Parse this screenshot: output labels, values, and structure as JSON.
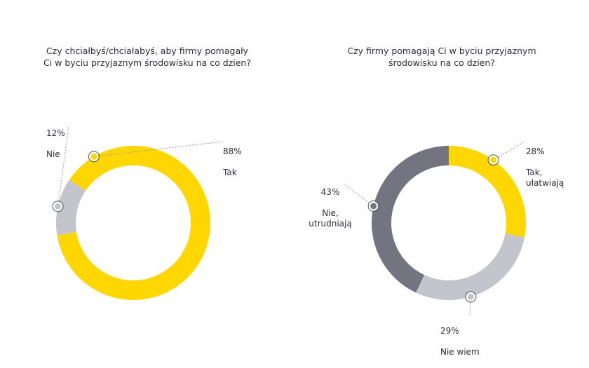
{
  "chart_data": [
    {
      "type": "pie",
      "title": "Czy chciałbyś/chciałabyś, aby firmy pomagały\nCi w byciu przyjaznym środowisku na co dzien?",
      "slices": [
        {
          "label": "Tak",
          "value": 88,
          "value_label": "88%",
          "color": "#ffd700"
        },
        {
          "label": "Nie",
          "value": 12,
          "value_label": "12%",
          "color": "#c4c4cd"
        }
      ],
      "donut": true
    },
    {
      "type": "pie",
      "title": "Czy firmy pomagają Ci w byciu przyjaznym\nśrodowisku na co dzien?",
      "slices": [
        {
          "label": "Tak,\nułatwiają",
          "value": 28,
          "value_label": "28%",
          "color": "#ffd700"
        },
        {
          "label": "Nie wiem",
          "value": 29,
          "value_label": "29%",
          "color": "#c4c4cd"
        },
        {
          "label": "Nie,\nutrudniają",
          "value": 43,
          "value_label": "43%",
          "color": "#747480"
        }
      ],
      "donut": true
    }
  ]
}
